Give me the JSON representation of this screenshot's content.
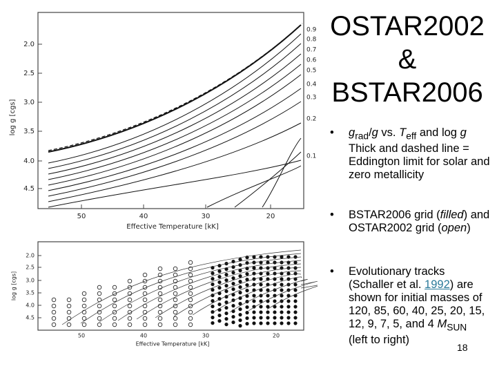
{
  "slide": {
    "title_lines": [
      "OSTAR2002",
      "&",
      "BSTAR2006"
    ],
    "bullets": [
      [
        "g",
        "rad",
        "/",
        "g",
        " vs. ",
        "T",
        "eff",
        " and log ",
        "g",
        "Thick and dashed line = Eddington limit for solar and zero metallicity"
      ],
      [
        "BSTAR2006 grid (",
        "filled",
        ") and OSTAR2002 grid (",
        "open",
        ")"
      ],
      [
        "Evolutionary tracks (Schaller et al. ",
        "1992",
        ") are shown for initial masses of 120, 85, 60, 40, 25, 20, 15, 12, 9, 7, 5, and 4 ",
        "M",
        "SUN",
        "(left to right)"
      ]
    ],
    "page_number": "18"
  },
  "figure_top": {
    "y_label": "log g [cgs]",
    "x_label": "Effective Temperature [kK]",
    "y_ticks": [
      "2.0",
      "2.5",
      "3.0",
      "3.5",
      "4.0",
      "4.5"
    ],
    "x_ticks": [
      "50",
      "40",
      "30",
      "20"
    ],
    "curve_labels": [
      "0.9",
      "0.8",
      "0.7",
      "0.6",
      "0.5",
      "0.4",
      "0.3",
      "0.2",
      "0.1"
    ]
  },
  "figure_bottom": {
    "y_label": "log g [cgs]",
    "x_label": "Effective Temperature [kK]",
    "y_ticks": [
      "2.0",
      "2.5",
      "3.0",
      "3.5",
      "4.0",
      "4.5"
    ],
    "x_ticks": [
      "50",
      "40",
      "30",
      "20"
    ]
  }
}
